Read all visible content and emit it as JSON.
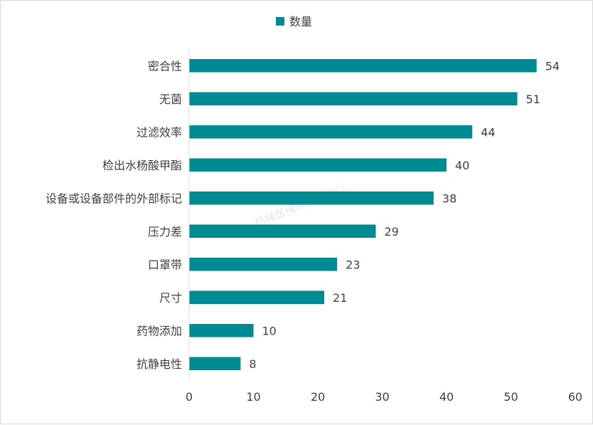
{
  "chart_data": {
    "type": "bar",
    "orientation": "horizontal",
    "categories": [
      "密合性",
      "无菌",
      "过滤效率",
      "检出水杨酸甲酯",
      "设备或设备部件的外部标记",
      "压力差",
      "口罩带",
      "尺寸",
      "药物添加",
      "抗静电性"
    ],
    "series": [
      {
        "name": "数量",
        "values": [
          54,
          51,
          44,
          40,
          38,
          29,
          23,
          21,
          10,
          8
        ]
      }
    ],
    "xlim": [
      0,
      60
    ],
    "xticks": [
      0,
      10,
      20,
      30,
      40,
      50,
      60
    ],
    "legend_position": "top-center",
    "grid": false,
    "bar_color": "#008b93",
    "data_labels": true,
    "watermark": "药械医械院数据中心"
  }
}
